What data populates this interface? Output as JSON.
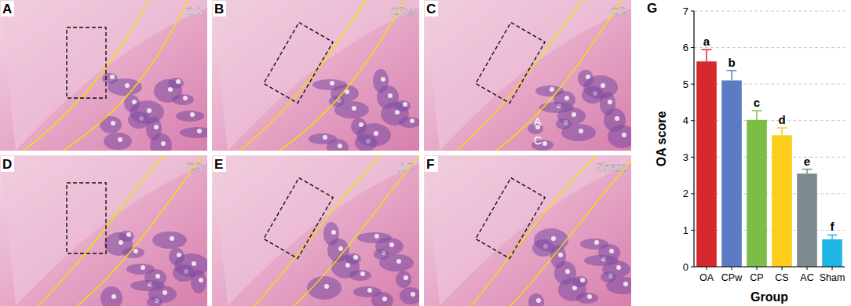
{
  "image_panels": [
    {
      "letter": "A",
      "label": "OA"
    },
    {
      "letter": "B",
      "label": "CPw"
    },
    {
      "letter": "C",
      "label": "CP",
      "inset_text": [
        "A",
        "C"
      ]
    },
    {
      "letter": "D",
      "label": "CS"
    },
    {
      "letter": "E",
      "label": "AC"
    },
    {
      "letter": "F",
      "label": "Sham"
    }
  ],
  "chart_panel": "G",
  "chart_data": {
    "type": "bar",
    "x_label": "Group",
    "y_label": "OA score",
    "categories": [
      "OA",
      "CPw",
      "CP",
      "CS",
      "AC",
      "Sham"
    ],
    "values": [
      5.62,
      5.1,
      4.02,
      3.6,
      2.55,
      0.75
    ],
    "errors": [
      0.32,
      0.27,
      0.25,
      0.2,
      0.12,
      0.12
    ],
    "annotations": [
      "a",
      "b",
      "c",
      "d",
      "e",
      "f"
    ],
    "colors": [
      "#d7282f",
      "#5b7cc4",
      "#7cbd45",
      "#fdcd1c",
      "#7f8a8f",
      "#1fb6e5"
    ],
    "ylim": [
      0,
      7
    ],
    "yticks": [
      0,
      1,
      2,
      3,
      4,
      5,
      6,
      7
    ],
    "grid": true
  }
}
